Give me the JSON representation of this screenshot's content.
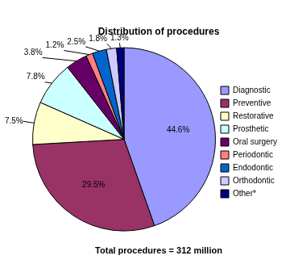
{
  "chart_data": {
    "type": "pie",
    "title": "Distribution of procedures",
    "subtitle": "Total procedures = 312 million",
    "categories": [
      "Diagnostic",
      "Preventive",
      "Restorative",
      "Prosthetic",
      "Oral surgery",
      "Periodontic",
      "Endodontic",
      "Orthodontic",
      "Other*"
    ],
    "values": [
      44.6,
      29.5,
      7.5,
      7.8,
      3.8,
      1.2,
      2.5,
      1.8,
      1.3
    ],
    "value_labels": [
      "44.6%",
      "29.5%",
      "7.5%",
      "7.8%",
      "3.8%",
      "1.2%",
      "2.5%",
      "1.8%",
      "1.3%"
    ],
    "colors": [
      "#9999ff",
      "#993366",
      "#ffffcc",
      "#ccffff",
      "#660066",
      "#ff8080",
      "#0066cc",
      "#ccccff",
      "#000080"
    ],
    "legend": "right",
    "data_labels": true
  }
}
